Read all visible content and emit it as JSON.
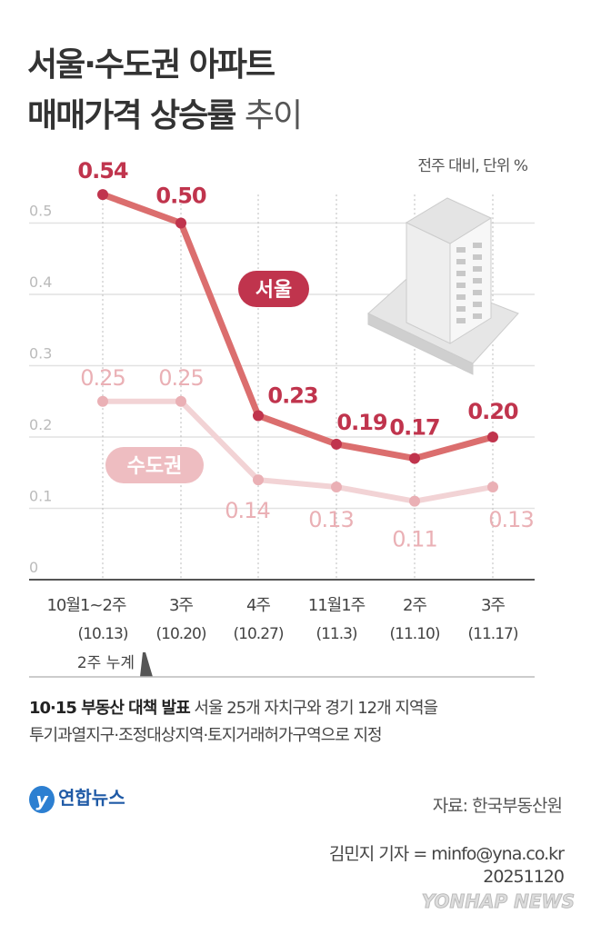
{
  "title": {
    "line1": "서울·수도권 아파트",
    "line2_bold": "매매가격 상승률",
    "line2_light": "추이"
  },
  "unit_label": "전주 대비, 단위 %",
  "chart_data": {
    "type": "line",
    "categories": [
      "10월1~2주",
      "3주",
      "4주",
      "11월1주",
      "2주",
      "3주"
    ],
    "sub_categories": [
      "(10.13)",
      "(10.20)",
      "(10.27)",
      "(11.3)",
      "(11.10)",
      "(11.17)"
    ],
    "series": [
      {
        "name": "서울",
        "values": [
          0.54,
          0.5,
          0.23,
          0.19,
          0.17,
          0.2
        ],
        "labels": [
          "0.54",
          "0.50",
          "0.23",
          "0.19",
          "0.17",
          "0.20"
        ],
        "color": "#c0344d",
        "line_color": "#db6e6e"
      },
      {
        "name": "수도권",
        "values": [
          0.25,
          0.25,
          0.14,
          0.13,
          0.11,
          0.13
        ],
        "labels": [
          "0.25",
          "0.25",
          "0.14",
          "0.13",
          "0.11",
          "0.13"
        ],
        "color": "#eab0b5",
        "line_color": "#f2d3d5"
      }
    ],
    "yticks": [
      "0",
      "0.1",
      "0.2",
      "0.3",
      "0.4",
      "0.5"
    ],
    "ylim": [
      0,
      0.55
    ],
    "grid": true,
    "annotation": "2주 누계"
  },
  "note": {
    "bold": "10·15 부동산 대책 발표",
    "text1": "서울 25개 자치구와 경기 12개 지역을",
    "text2": "투기과열지구·조정대상지역·토지거래허가구역으로 지정"
  },
  "source": "자료: 한국부동산원",
  "credit": "김민지 기자 = minfo@yna.co.kr",
  "date": "20251120",
  "logo": "연합뉴스",
  "watermark": "YONHAP NEWS"
}
